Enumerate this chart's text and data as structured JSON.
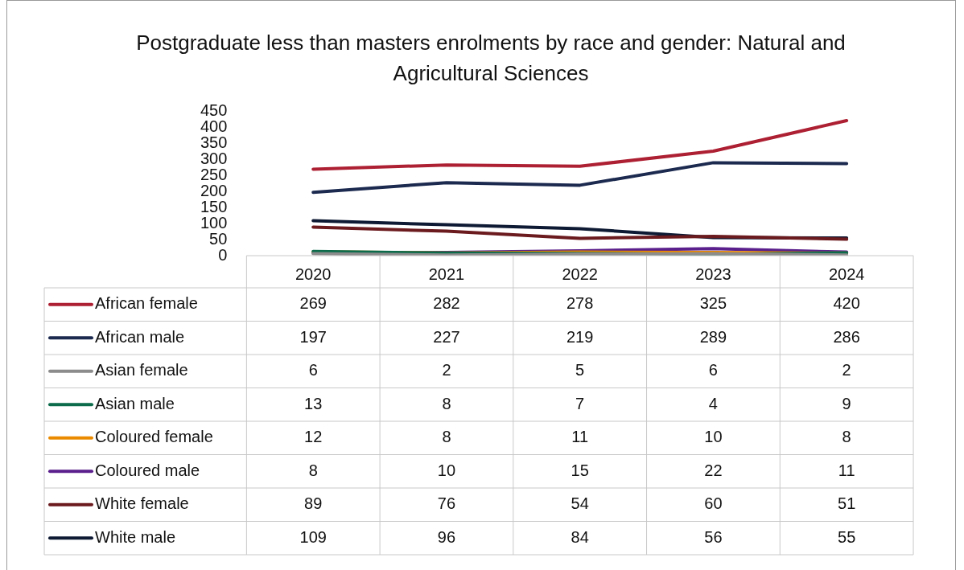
{
  "chart_data": {
    "type": "line",
    "title": "Postgraduate less than masters enrolments by race and gender: Natural and Agricultural Sciences",
    "categories": [
      "2020",
      "2021",
      "2022",
      "2023",
      "2024"
    ],
    "ylim": [
      0,
      450
    ],
    "yticks": [
      0,
      50,
      100,
      150,
      200,
      250,
      300,
      350,
      400,
      450
    ],
    "grid": false,
    "legend": "bottom",
    "data_labels": true,
    "marker": "none",
    "series": [
      {
        "name": "African female",
        "color": "#ad1f32",
        "values": [
          269,
          282,
          278,
          325,
          420
        ]
      },
      {
        "name": "African male",
        "color": "#1c2a50",
        "values": [
          197,
          227,
          219,
          289,
          286
        ]
      },
      {
        "name": "Asian female",
        "color": "#8c8c8c",
        "values": [
          6,
          2,
          5,
          6,
          2
        ]
      },
      {
        "name": "Asian male",
        "color": "#0b6b4b",
        "values": [
          13,
          8,
          7,
          4,
          9
        ]
      },
      {
        "name": "Coloured female",
        "color": "#ea8a00",
        "values": [
          12,
          8,
          11,
          10,
          8
        ]
      },
      {
        "name": "Coloured male",
        "color": "#5a1f8c",
        "values": [
          8,
          10,
          15,
          22,
          11
        ]
      },
      {
        "name": "White female",
        "color": "#6b1a1e",
        "values": [
          89,
          76,
          54,
          60,
          51
        ]
      },
      {
        "name": "White male",
        "color": "#0e1a33",
        "values": [
          109,
          96,
          84,
          56,
          55
        ]
      }
    ]
  }
}
